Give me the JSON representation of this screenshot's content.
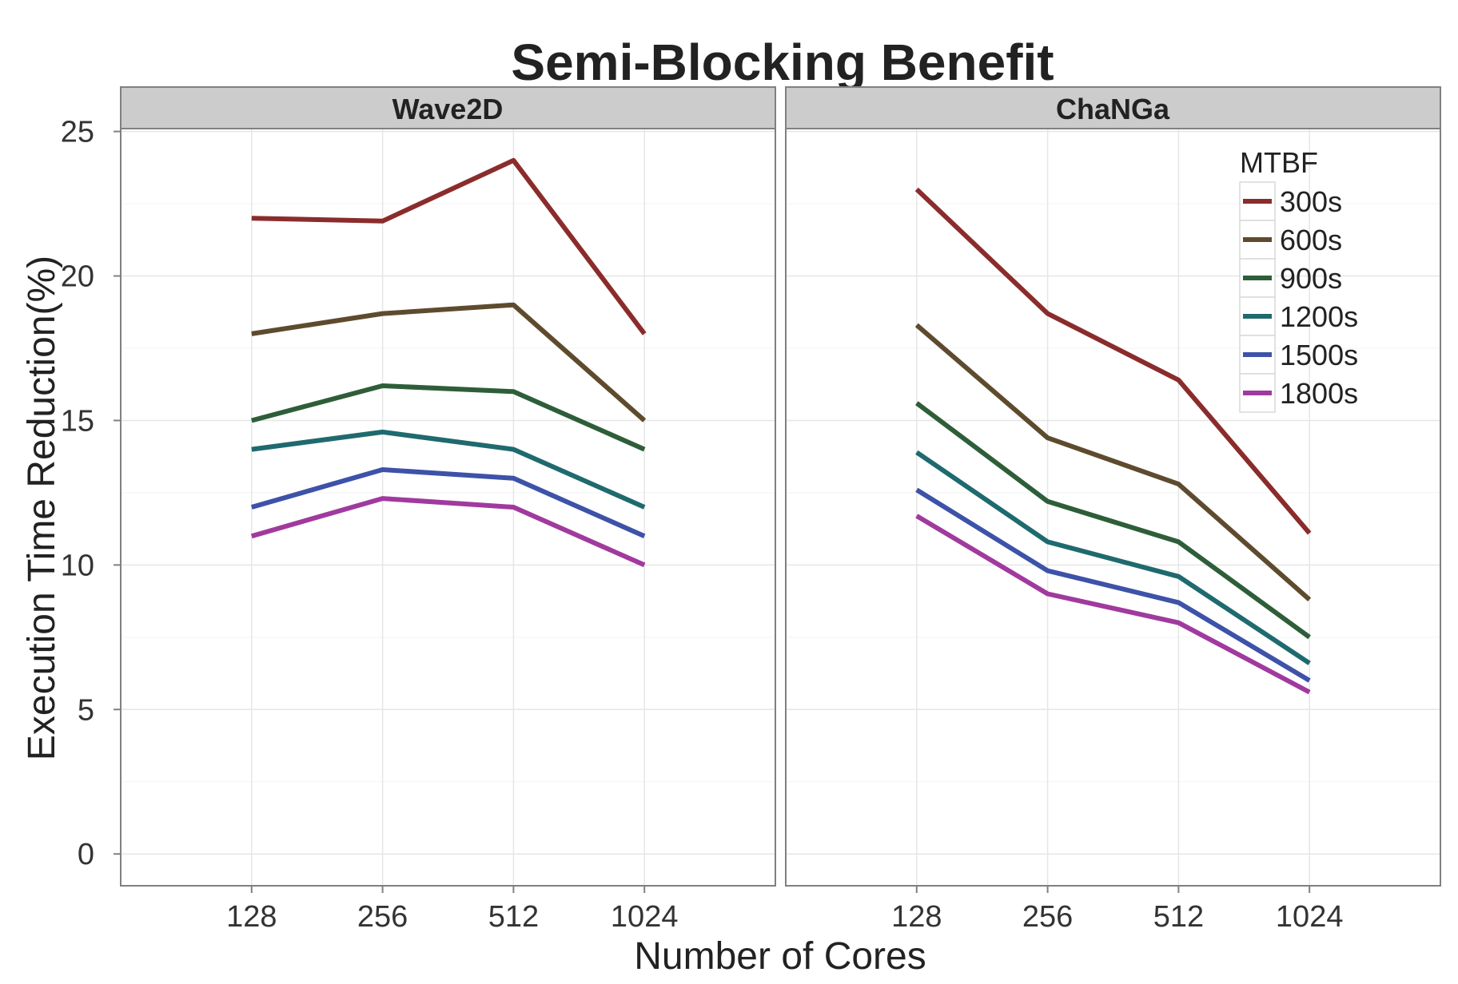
{
  "chart_data": {
    "type": "line",
    "title": "Semi-Blocking Benefit",
    "xlabel": "Number of Cores",
    "ylabel": "Execution Time Reduction(%)",
    "categories": [
      "128",
      "256",
      "512",
      "1024"
    ],
    "ylim": [
      -1.1,
      25.1
    ],
    "yticks": [
      0,
      5,
      10,
      15,
      20,
      25
    ],
    "grid": true,
    "legend": {
      "title": "MTBF",
      "placement": "top-right inside ChaNGa panel",
      "entries": [
        "300s",
        "600s",
        "900s",
        "1200s",
        "1500s",
        "1800s"
      ]
    },
    "colors": {
      "300s": "#8B2C2C",
      "600s": "#5E4B2E",
      "900s": "#2E5E39",
      "1200s": "#1F6A6E",
      "1500s": "#3D52A8",
      "1800s": "#A03A9E"
    },
    "panels": [
      {
        "name": "Wave2D",
        "series": [
          {
            "name": "300s",
            "values": [
              22.0,
              21.9,
              24.0,
              18.0
            ]
          },
          {
            "name": "600s",
            "values": [
              18.0,
              18.7,
              19.0,
              15.0
            ]
          },
          {
            "name": "900s",
            "values": [
              15.0,
              16.2,
              16.0,
              14.0
            ]
          },
          {
            "name": "1200s",
            "values": [
              14.0,
              14.6,
              14.0,
              12.0
            ]
          },
          {
            "name": "1500s",
            "values": [
              12.0,
              13.3,
              13.0,
              11.0
            ]
          },
          {
            "name": "1800s",
            "values": [
              11.0,
              12.3,
              12.0,
              10.0
            ]
          }
        ]
      },
      {
        "name": "ChaNGa",
        "series": [
          {
            "name": "300s",
            "values": [
              23.0,
              18.7,
              16.4,
              11.1
            ]
          },
          {
            "name": "600s",
            "values": [
              18.3,
              14.4,
              12.8,
              8.8
            ]
          },
          {
            "name": "900s",
            "values": [
              15.6,
              12.2,
              10.8,
              7.5
            ]
          },
          {
            "name": "1200s",
            "values": [
              13.9,
              10.8,
              9.6,
              6.6
            ]
          },
          {
            "name": "1500s",
            "values": [
              12.6,
              9.8,
              8.7,
              6.0
            ]
          },
          {
            "name": "1800s",
            "values": [
              11.7,
              9.0,
              8.0,
              5.6
            ]
          }
        ]
      }
    ]
  }
}
